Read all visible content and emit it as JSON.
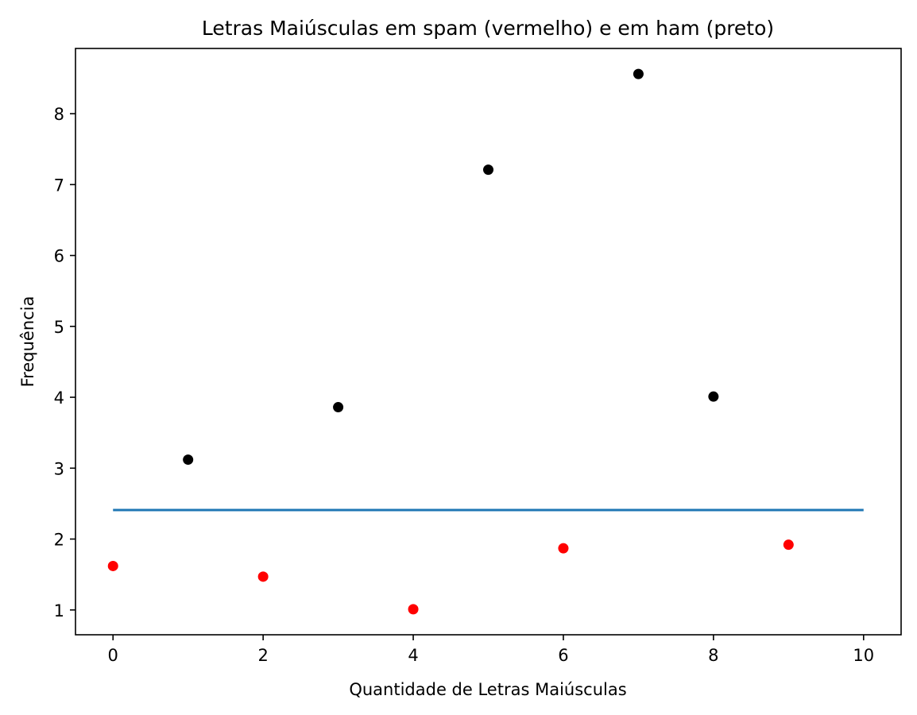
{
  "chart_data": {
    "type": "scatter",
    "title": "Letras Maiúsculas em spam (vermelho) e em ham (preto)",
    "xlabel": "Quantidade de Letras Maiúsculas",
    "ylabel": "Frequência",
    "xlim": [
      -0.5,
      10.5
    ],
    "ylim": [
      0.65,
      8.92
    ],
    "xticks": [
      "0",
      "2",
      "4",
      "6",
      "8",
      "10"
    ],
    "yticks": [
      "1",
      "2",
      "3",
      "4",
      "5",
      "6",
      "7",
      "8"
    ],
    "grid": false,
    "series": [
      {
        "color": "#ff0000",
        "points": [
          {
            "x": 0,
            "y": 1.62
          },
          {
            "x": 2,
            "y": 1.47
          },
          {
            "x": 4,
            "y": 1.01
          },
          {
            "x": 6,
            "y": 1.87
          },
          {
            "x": 9,
            "y": 1.92
          }
        ]
      },
      {
        "color": "#000000",
        "points": [
          {
            "x": 1,
            "y": 3.12
          },
          {
            "x": 3,
            "y": 3.86
          },
          {
            "x": 5,
            "y": 7.21
          },
          {
            "x": 7,
            "y": 8.56
          },
          {
            "x": 8,
            "y": 4.01
          }
        ]
      }
    ],
    "lines": [
      {
        "color": "#1f77b4",
        "x": [
          0,
          10
        ],
        "y": [
          2.41,
          2.41
        ]
      }
    ]
  }
}
